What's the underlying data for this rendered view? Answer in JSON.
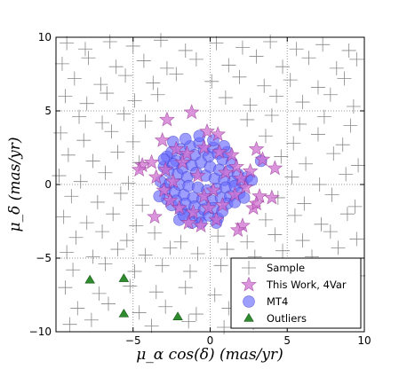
{
  "chart_data": {
    "type": "scatter",
    "title": "",
    "xlabel": "μ_α cos(δ) (mas/yr)",
    "ylabel": "μ_δ (mas/yr)",
    "xlim": [
      -10,
      10
    ],
    "ylim": [
      -10,
      10
    ],
    "xticks": [
      -5,
      0,
      5,
      10
    ],
    "yticks": [
      -10,
      -5,
      0,
      5,
      10
    ],
    "grid": true,
    "legend_position": "bottom-right",
    "colors": {
      "sample": "#888888",
      "this_work": "#d070d0",
      "mt4": "#6a6aff",
      "outliers": "#2e8b2e"
    },
    "series": [
      {
        "name": "Sample",
        "marker": "plus",
        "points": [
          [
            -9.3,
            9.6
          ],
          [
            -8.1,
            9.2
          ],
          [
            -6.5,
            9.7
          ],
          [
            -5.0,
            9.4
          ],
          [
            -3.2,
            9.8
          ],
          [
            -1.6,
            9.1
          ],
          [
            0.4,
            9.6
          ],
          [
            2.1,
            9.3
          ],
          [
            3.9,
            9.7
          ],
          [
            5.6,
            9.2
          ],
          [
            7.3,
            9.5
          ],
          [
            9.0,
            9.1
          ],
          [
            -9.6,
            8.2
          ],
          [
            -7.9,
            8.6
          ],
          [
            -6.1,
            8.0
          ],
          [
            -4.3,
            8.4
          ],
          [
            -2.8,
            7.9
          ],
          [
            -0.9,
            8.5
          ],
          [
            1.2,
            8.1
          ],
          [
            3.0,
            8.7
          ],
          [
            4.7,
            8.0
          ],
          [
            6.4,
            8.6
          ],
          [
            8.2,
            7.9
          ],
          [
            9.5,
            8.5
          ],
          [
            -8.8,
            7.2
          ],
          [
            -7.1,
            6.8
          ],
          [
            -5.5,
            7.4
          ],
          [
            -3.7,
            6.9
          ],
          [
            -2.2,
            7.5
          ],
          [
            0.1,
            7.0
          ],
          [
            1.9,
            7.3
          ],
          [
            3.5,
            6.7
          ],
          [
            5.2,
            7.1
          ],
          [
            7.0,
            6.6
          ],
          [
            8.7,
            7.2
          ],
          [
            -9.4,
            6.0
          ],
          [
            -8.0,
            5.5
          ],
          [
            -6.7,
            6.2
          ],
          [
            -4.9,
            5.7
          ],
          [
            -3.4,
            6.1
          ],
          [
            1.0,
            5.9
          ],
          [
            2.6,
            5.4
          ],
          [
            4.3,
            6.0
          ],
          [
            6.0,
            5.6
          ],
          [
            7.8,
            6.1
          ],
          [
            9.3,
            5.3
          ],
          [
            -8.5,
            4.6
          ],
          [
            -7.0,
            4.2
          ],
          [
            -5.6,
            4.8
          ],
          [
            -4.2,
            4.3
          ],
          [
            2.4,
            4.4
          ],
          [
            4.0,
            4.7
          ],
          [
            5.8,
            4.1
          ],
          [
            7.4,
            4.6
          ],
          [
            9.1,
            4.0
          ],
          [
            -9.7,
            3.5
          ],
          [
            -8.2,
            3.0
          ],
          [
            -6.4,
            3.6
          ],
          [
            -5.0,
            2.9
          ],
          [
            3.6,
            3.3
          ],
          [
            5.4,
            2.8
          ],
          [
            7.0,
            3.4
          ],
          [
            8.6,
            2.7
          ],
          [
            -9.2,
            2.0
          ],
          [
            -7.6,
            1.6
          ],
          [
            -6.0,
            2.2
          ],
          [
            -4.6,
            1.5
          ],
          [
            4.6,
            1.9
          ],
          [
            6.2,
            1.4
          ],
          [
            8.0,
            2.1
          ],
          [
            9.6,
            1.3
          ],
          [
            -9.8,
            0.6
          ],
          [
            -8.4,
            0.2
          ],
          [
            -6.8,
            0.8
          ],
          [
            -5.3,
            0.1
          ],
          [
            5.3,
            0.5
          ],
          [
            7.1,
            0.0
          ],
          [
            8.8,
            0.7
          ],
          [
            -9.0,
            -0.8
          ],
          [
            -7.3,
            -1.2
          ],
          [
            -5.8,
            -0.6
          ],
          [
            -4.4,
            -1.4
          ],
          [
            4.4,
            -0.9
          ],
          [
            6.1,
            -1.3
          ],
          [
            7.9,
            -0.7
          ],
          [
            9.4,
            -1.5
          ],
          [
            -9.5,
            -2.2
          ],
          [
            -8.0,
            -2.6
          ],
          [
            -6.3,
            -2.0
          ],
          [
            -4.8,
            -2.8
          ],
          [
            3.6,
            -2.4
          ],
          [
            5.5,
            -2.1
          ],
          [
            7.2,
            -2.7
          ],
          [
            8.9,
            -2.0
          ],
          [
            -8.7,
            -3.6
          ],
          [
            -7.0,
            -3.2
          ],
          [
            -5.4,
            -3.8
          ],
          [
            -3.6,
            -3.3
          ],
          [
            -1.9,
            -3.9
          ],
          [
            0.5,
            -3.5
          ],
          [
            2.4,
            -3.9
          ],
          [
            4.2,
            -3.4
          ],
          [
            6.0,
            -3.8
          ],
          [
            7.8,
            -3.2
          ],
          [
            9.5,
            -3.7
          ],
          [
            -9.3,
            -4.6
          ],
          [
            -7.6,
            -4.9
          ],
          [
            -6.0,
            -4.4
          ],
          [
            -4.2,
            -4.8
          ],
          [
            -2.6,
            -4.3
          ],
          [
            -0.8,
            -4.7
          ],
          [
            1.1,
            -4.4
          ],
          [
            2.9,
            -4.9
          ],
          [
            4.7,
            -4.5
          ],
          [
            6.6,
            -4.9
          ],
          [
            8.3,
            -4.3
          ],
          [
            -8.9,
            -5.8
          ],
          [
            -6.8,
            -5.4
          ],
          [
            -4.9,
            -5.9
          ],
          [
            -3.1,
            -5.5
          ],
          [
            -1.3,
            -5.9
          ],
          [
            0.7,
            -5.5
          ],
          [
            2.5,
            -6.0
          ],
          [
            4.3,
            -5.6
          ],
          [
            6.1,
            -6.1
          ],
          [
            7.8,
            -5.7
          ],
          [
            9.6,
            -6.2
          ],
          [
            -9.4,
            -7.0
          ],
          [
            -7.2,
            -7.4
          ],
          [
            -5.2,
            -6.9
          ],
          [
            -3.5,
            -7.3
          ],
          [
            -1.6,
            -7.0
          ],
          [
            0.3,
            -7.5
          ],
          [
            2.0,
            -7.1
          ],
          [
            3.8,
            -7.6
          ],
          [
            5.7,
            -7.2
          ],
          [
            7.4,
            -7.7
          ],
          [
            -8.6,
            -8.4
          ],
          [
            -6.6,
            -8.1
          ],
          [
            -4.6,
            -8.7
          ],
          [
            -2.9,
            -8.3
          ],
          [
            -0.9,
            -8.8
          ],
          [
            1.2,
            -8.4
          ],
          [
            3.1,
            -8.9
          ],
          [
            4.9,
            -8.5
          ],
          [
            -9.1,
            -9.5
          ],
          [
            -7.7,
            -9.2
          ],
          [
            -3.8,
            -9.6
          ],
          [
            -1.4,
            -9.3
          ],
          [
            0.9,
            -9.7
          ],
          [
            2.8,
            -9.4
          ]
        ]
      },
      {
        "name": "This Work, 4Var",
        "marker": "star",
        "points": [
          [
            -2.8,
            4.4
          ],
          [
            -1.2,
            4.9
          ],
          [
            -0.2,
            3.6
          ],
          [
            0.5,
            3.4
          ],
          [
            -3.1,
            3.0
          ],
          [
            3.0,
            2.4
          ],
          [
            3.4,
            1.7
          ],
          [
            -4.4,
            1.3
          ],
          [
            4.2,
            1.1
          ],
          [
            -4.6,
            1.0
          ],
          [
            3.2,
            -0.8
          ],
          [
            4.0,
            -0.9
          ],
          [
            -3.6,
            -2.2
          ],
          [
            2.1,
            -2.8
          ],
          [
            1.8,
            -3.1
          ],
          [
            2.8,
            -1.6
          ],
          [
            3.0,
            -1.3
          ],
          [
            -1.4,
            -2.6
          ],
          [
            -0.6,
            -2.8
          ],
          [
            0.4,
            -2.4
          ],
          [
            -3.5,
            0.5
          ],
          [
            -3.8,
            1.5
          ],
          [
            -2.2,
            2.4
          ],
          [
            -1.5,
            2.1
          ],
          [
            -0.4,
            2.5
          ],
          [
            0.6,
            2.2
          ],
          [
            1.4,
            2.0
          ],
          [
            1.7,
            1.2
          ],
          [
            -2.6,
            -1.1
          ],
          [
            -2.0,
            -1.6
          ],
          [
            -1.1,
            -1.9
          ],
          [
            -0.1,
            -1.6
          ],
          [
            0.8,
            -1.4
          ],
          [
            1.6,
            -0.7
          ],
          [
            2.3,
            -0.2
          ],
          [
            -3.0,
            -0.4
          ],
          [
            -2.9,
            1.0
          ],
          [
            -0.8,
            0.6
          ],
          [
            0.2,
            -0.4
          ],
          [
            1.0,
            0.8
          ],
          [
            -1.8,
            1.5
          ],
          [
            -0.4,
            -0.8
          ],
          [
            2.0,
            0.4
          ],
          [
            2.6,
            0.9
          ],
          [
            -2.4,
            0.2
          ]
        ]
      },
      {
        "name": "MT4",
        "marker": "circle",
        "points": [
          [
            -2.8,
            1.9
          ],
          [
            -2.5,
            2.2
          ],
          [
            -2.2,
            1.6
          ],
          [
            -1.9,
            2.4
          ],
          [
            -1.6,
            1.8
          ],
          [
            -1.3,
            2.6
          ],
          [
            -1.0,
            2.0
          ],
          [
            -0.7,
            2.8
          ],
          [
            -0.4,
            2.3
          ],
          [
            -0.1,
            1.9
          ],
          [
            0.2,
            2.5
          ],
          [
            0.5,
            2.1
          ],
          [
            0.8,
            1.7
          ],
          [
            1.1,
            2.2
          ],
          [
            1.4,
            1.5
          ],
          [
            -3.0,
            1.2
          ],
          [
            -2.7,
            0.9
          ],
          [
            -2.4,
            1.4
          ],
          [
            -2.1,
            0.7
          ],
          [
            -1.8,
            1.1
          ],
          [
            -1.5,
            0.5
          ],
          [
            -1.2,
            1.3
          ],
          [
            -0.9,
            0.8
          ],
          [
            -0.6,
            1.5
          ],
          [
            -0.3,
            0.6
          ],
          [
            0.0,
            1.2
          ],
          [
            0.3,
            0.4
          ],
          [
            0.6,
            1.0
          ],
          [
            0.9,
            0.3
          ],
          [
            1.2,
            0.9
          ],
          [
            1.5,
            0.2
          ],
          [
            1.8,
            0.7
          ],
          [
            2.1,
            0.1
          ],
          [
            2.4,
            0.5
          ],
          [
            -3.2,
            0.2
          ],
          [
            -2.9,
            -0.3
          ],
          [
            -2.6,
            0.1
          ],
          [
            -2.3,
            -0.5
          ],
          [
            -2.0,
            0.0
          ],
          [
            -1.7,
            -0.7
          ],
          [
            -1.4,
            -0.1
          ],
          [
            -1.1,
            -0.9
          ],
          [
            -0.8,
            -0.2
          ],
          [
            -0.5,
            -1.0
          ],
          [
            -0.2,
            -0.4
          ],
          [
            0.1,
            -1.1
          ],
          [
            0.4,
            -0.3
          ],
          [
            0.7,
            -0.9
          ],
          [
            1.0,
            -0.2
          ],
          [
            1.3,
            -0.8
          ],
          [
            1.6,
            -0.1
          ],
          [
            1.9,
            -0.6
          ],
          [
            -2.8,
            -1.0
          ],
          [
            -2.5,
            -1.4
          ],
          [
            -2.2,
            -1.1
          ],
          [
            -1.9,
            -1.7
          ],
          [
            -1.6,
            -1.3
          ],
          [
            -1.3,
            -2.0
          ],
          [
            -1.0,
            -1.5
          ],
          [
            -0.7,
            -2.2
          ],
          [
            -0.4,
            -1.7
          ],
          [
            -0.1,
            -2.1
          ],
          [
            0.2,
            -1.6
          ],
          [
            0.5,
            -2.3
          ],
          [
            0.8,
            -1.8
          ],
          [
            1.1,
            -1.3
          ],
          [
            -1.6,
            3.1
          ],
          [
            -0.7,
            3.3
          ],
          [
            0.2,
            3.0
          ],
          [
            -2.4,
            2.9
          ],
          [
            0.9,
            2.6
          ],
          [
            -3.3,
            -0.8
          ],
          [
            -2.0,
            -2.4
          ],
          [
            -0.6,
            -2.6
          ],
          [
            0.4,
            -2.6
          ],
          [
            1.6,
            -1.2
          ],
          [
            2.2,
            -0.9
          ],
          [
            2.7,
            0.3
          ],
          [
            -3.0,
            1.7
          ],
          [
            -1.2,
            -2.6
          ],
          [
            3.3,
            1.6
          ],
          [
            -1.7,
            -2.1
          ]
        ]
      },
      {
        "name": "Outliers",
        "marker": "triangle",
        "points": [
          [
            -7.8,
            -6.5
          ],
          [
            -5.6,
            -6.4
          ],
          [
            -5.6,
            -8.8
          ],
          [
            -2.1,
            -9.0
          ]
        ]
      }
    ]
  }
}
